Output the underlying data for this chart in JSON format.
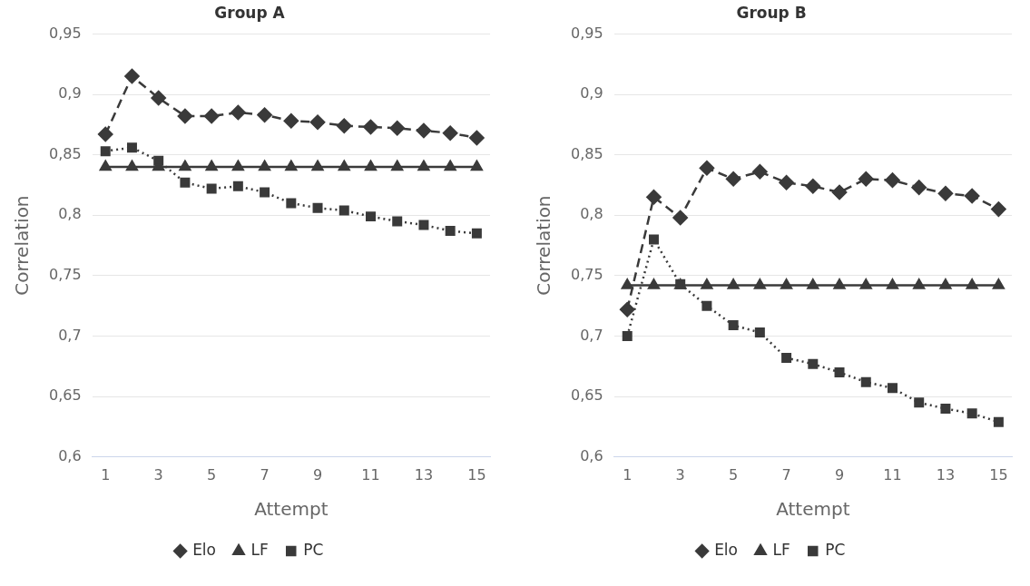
{
  "chart_data": [
    {
      "type": "line",
      "title": "Group A",
      "xlabel": "Attempt",
      "ylabel": "Correlation",
      "x": [
        1,
        2,
        3,
        4,
        5,
        6,
        7,
        8,
        9,
        10,
        11,
        12,
        13,
        14,
        15
      ],
      "series": [
        {
          "name": "Elo",
          "color": "#3a3a3a",
          "marker": "diamond",
          "line_style": "dashed",
          "values": [
            0.867,
            0.915,
            0.897,
            0.882,
            0.882,
            0.885,
            0.883,
            0.878,
            0.877,
            0.874,
            0.873,
            0.872,
            0.87,
            0.868,
            0.864
          ]
        },
        {
          "name": "LF",
          "color": "#3a3a3a",
          "marker": "triangle",
          "line_style": "solid",
          "values": [
            0.84,
            0.84,
            0.84,
            0.84,
            0.84,
            0.84,
            0.84,
            0.84,
            0.84,
            0.84,
            0.84,
            0.84,
            0.84,
            0.84,
            0.84
          ]
        },
        {
          "name": "PC",
          "color": "#3a3a3a",
          "marker": "square",
          "line_style": "dotted",
          "values": [
            0.853,
            0.856,
            0.845,
            0.827,
            0.822,
            0.824,
            0.819,
            0.81,
            0.806,
            0.804,
            0.799,
            0.795,
            0.792,
            0.787,
            0.785
          ]
        }
      ],
      "xlim": [
        0.5,
        15.5
      ],
      "xticks": [
        1,
        3,
        5,
        7,
        9,
        11,
        13,
        15
      ],
      "ylim": [
        0.6,
        0.95
      ],
      "yticks": [
        {
          "value": 0.6,
          "label": "0,6"
        },
        {
          "value": 0.65,
          "label": "0,65"
        },
        {
          "value": 0.7,
          "label": "0,7"
        },
        {
          "value": 0.75,
          "label": "0,75"
        },
        {
          "value": 0.8,
          "label": "0,8"
        },
        {
          "value": 0.85,
          "label": "0,85"
        },
        {
          "value": 0.9,
          "label": "0,9"
        },
        {
          "value": 0.95,
          "label": "0,95"
        }
      ],
      "grid": "y",
      "legend": "bottom"
    },
    {
      "type": "line",
      "title": "Group B",
      "xlabel": "Attempt",
      "ylabel": "Correlation",
      "x": [
        1,
        2,
        3,
        4,
        5,
        6,
        7,
        8,
        9,
        10,
        11,
        12,
        13,
        14,
        15
      ],
      "series": [
        {
          "name": "Elo",
          "color": "#3a3a3a",
          "marker": "diamond",
          "line_style": "dashed",
          "values": [
            0.722,
            0.815,
            0.798,
            0.839,
            0.83,
            0.836,
            0.827,
            0.824,
            0.819,
            0.83,
            0.829,
            0.823,
            0.818,
            0.816,
            0.805
          ]
        },
        {
          "name": "LF",
          "color": "#3a3a3a",
          "marker": "triangle",
          "line_style": "solid",
          "values": [
            0.742,
            0.742,
            0.742,
            0.742,
            0.742,
            0.742,
            0.742,
            0.742,
            0.742,
            0.742,
            0.742,
            0.742,
            0.742,
            0.742,
            0.742
          ]
        },
        {
          "name": "PC",
          "color": "#3a3a3a",
          "marker": "square",
          "line_style": "dotted",
          "values": [
            0.7,
            0.78,
            0.743,
            0.725,
            0.709,
            0.703,
            0.682,
            0.677,
            0.67,
            0.662,
            0.657,
            0.645,
            0.64,
            0.636,
            0.629
          ]
        }
      ],
      "xlim": [
        0.5,
        15.5
      ],
      "xticks": [
        1,
        3,
        5,
        7,
        9,
        11,
        13,
        15
      ],
      "ylim": [
        0.6,
        0.95
      ],
      "yticks": [
        {
          "value": 0.6,
          "label": "0,6"
        },
        {
          "value": 0.65,
          "label": "0,65"
        },
        {
          "value": 0.7,
          "label": "0,7"
        },
        {
          "value": 0.75,
          "label": "0,75"
        },
        {
          "value": 0.8,
          "label": "0,8"
        },
        {
          "value": 0.85,
          "label": "0,85"
        },
        {
          "value": 0.9,
          "label": "0,9"
        },
        {
          "value": 0.95,
          "label": "0,95"
        }
      ],
      "grid": "y",
      "legend": "bottom"
    }
  ]
}
